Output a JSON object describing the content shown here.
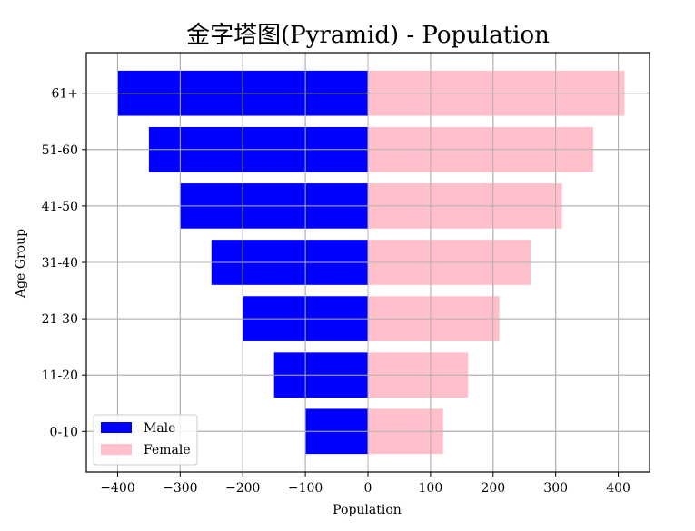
{
  "chart_data": {
    "type": "bar",
    "orientation": "horizontal",
    "title": "金字塔图(Pyramid) - Population",
    "xlabel": "Population",
    "ylabel": "Age Group",
    "categories": [
      "0-10",
      "11-20",
      "21-30",
      "31-40",
      "41-50",
      "51-60",
      "61+"
    ],
    "series": [
      {
        "name": "Male",
        "color": "#0000ff",
        "values": [
          -100,
          -150,
          -200,
          -250,
          -300,
          -350,
          -400
        ]
      },
      {
        "name": "Female",
        "color": "#ffc0cb",
        "values": [
          120,
          160,
          210,
          260,
          310,
          360,
          410
        ]
      }
    ],
    "xlim": [
      -450,
      450
    ],
    "xticks": [
      -400,
      -300,
      -200,
      -100,
      0,
      100,
      200,
      300,
      400
    ],
    "xtick_labels": [
      "−400",
      "−300",
      "−200",
      "−100",
      "0",
      "100",
      "200",
      "300",
      "400"
    ],
    "grid": true,
    "legend_position": "lower-left"
  }
}
